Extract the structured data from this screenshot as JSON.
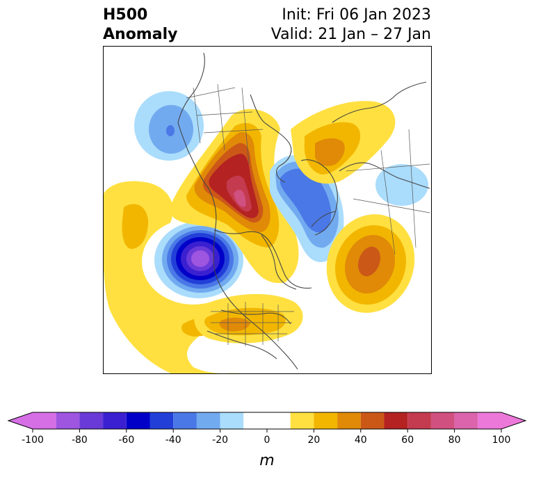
{
  "header": {
    "title_line1": "H500",
    "title_line2": "Anomaly",
    "init_label": "Init: Fri 06 Jan 2023",
    "valid_label": "Valid: 21 Jan – 27 Jan"
  },
  "colorbar": {
    "unit": "m",
    "ticks": [
      "-100",
      "-80",
      "-60",
      "-40",
      "-20",
      "0",
      "20",
      "40",
      "60",
      "80",
      "100"
    ],
    "levels": [
      -100,
      -90,
      -80,
      -70,
      -60,
      -50,
      -40,
      -30,
      -20,
      -10,
      10,
      20,
      30,
      40,
      50,
      60,
      70,
      80,
      90,
      100
    ],
    "under_color": "#d66ee6",
    "over_color": "#ec78da",
    "colors": [
      "#d66ee6",
      "#9e55e0",
      "#6a3ad8",
      "#3a20d0",
      "#0000c8",
      "#2240d8",
      "#4a78e6",
      "#72aaf0",
      "#aadcfc",
      "#ffffff",
      "#ffe040",
      "#f2b600",
      "#e08a08",
      "#cc5818",
      "#b42222",
      "#c43a4e",
      "#d05080",
      "#dc64ac",
      "#ec78da"
    ]
  },
  "map": {
    "region": "North America / North Pacific / North Atlantic",
    "anomalies": [
      {
        "name": "gulf-of-alaska-low",
        "peak_m": -45
      },
      {
        "name": "northeast-pacific-low",
        "peak_m": -95
      },
      {
        "name": "west-coast-ridge",
        "peak_m": 25
      },
      {
        "name": "central-canada-ridge",
        "peak_m": 85
      },
      {
        "name": "greenland-low",
        "peak_m": -45
      },
      {
        "name": "north-atlantic-ridge",
        "peak_m": 45
      },
      {
        "name": "siberia-ridge",
        "peak_m": 35
      },
      {
        "name": "southern-us-ridge",
        "peak_m": 35
      },
      {
        "name": "eurasia-low",
        "peak_m": -15
      }
    ]
  }
}
